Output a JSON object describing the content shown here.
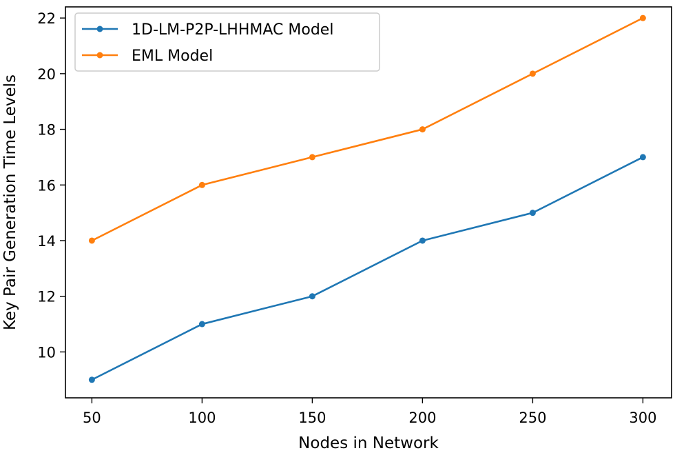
{
  "chart_data": {
    "type": "line",
    "title": "",
    "xlabel": "Nodes in Network",
    "ylabel": "Key Pair Generation Time Levels",
    "x": [
      50,
      100,
      150,
      200,
      250,
      300
    ],
    "xticks": [
      50,
      100,
      150,
      200,
      250,
      300
    ],
    "yticks": [
      10,
      12,
      14,
      16,
      18,
      20,
      22
    ],
    "xlim": [
      38,
      313
    ],
    "ylim": [
      8.35,
      22.4
    ],
    "grid": false,
    "legend_position": "upper-left",
    "series": [
      {
        "name": "1D-LM-P2P-LHHMAC Model",
        "color": "#1f77b4",
        "values": [
          9,
          11,
          12,
          14,
          15,
          17
        ]
      },
      {
        "name": "EML Model",
        "color": "#ff7f0e",
        "values": [
          14,
          16,
          17,
          18,
          20,
          22
        ]
      }
    ]
  }
}
